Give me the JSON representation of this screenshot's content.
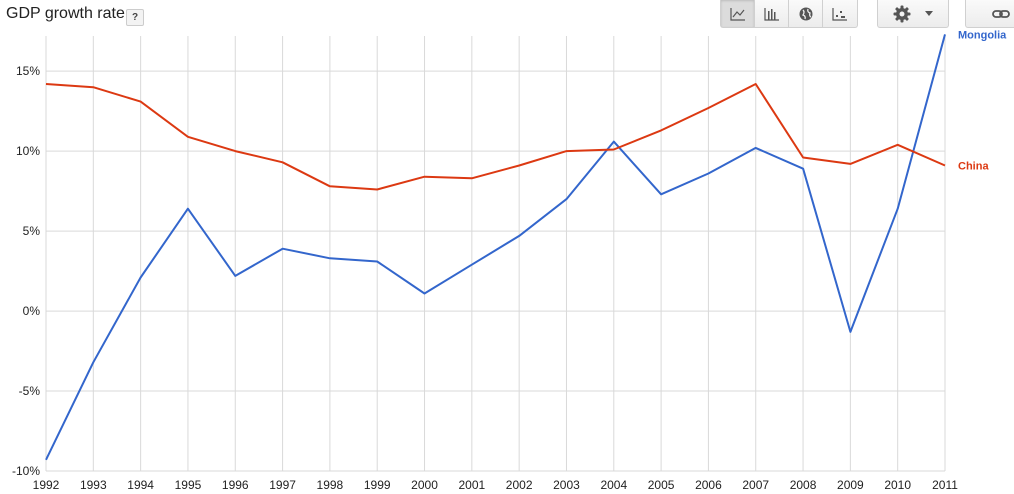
{
  "header": {
    "title": "GDP growth rate",
    "help_label": "?"
  },
  "toolbar": {
    "chart_types": [
      {
        "icon": "line-chart-icon",
        "active": true
      },
      {
        "icon": "bar-chart-icon",
        "active": false
      },
      {
        "icon": "globe-map-icon",
        "active": false
      },
      {
        "icon": "scatter-chart-icon",
        "active": false
      }
    ],
    "settings_icon": "gear-icon",
    "dropdown_icon": "caret-down-icon",
    "link_icon": "link-icon"
  },
  "chart_data": {
    "type": "line",
    "title": "GDP growth rate",
    "x": [
      1992,
      1993,
      1994,
      1995,
      1996,
      1997,
      1998,
      1999,
      2000,
      2001,
      2002,
      2003,
      2004,
      2005,
      2006,
      2007,
      2008,
      2009,
      2010,
      2011
    ],
    "x_tick_labels": [
      "1992",
      "1993",
      "1994",
      "1995",
      "1996",
      "1997",
      "1998",
      "1999",
      "2000",
      "2001",
      "2002",
      "2003",
      "2004",
      "2005",
      "2006",
      "2007",
      "2008",
      "2009",
      "2010",
      "2011"
    ],
    "y_tick_values": [
      -10,
      -5,
      0,
      5,
      10,
      15
    ],
    "y_tick_labels": [
      "-10%",
      "-5%",
      "0%",
      "5%",
      "10%",
      "15%"
    ],
    "ylim": [
      -10,
      17.2
    ],
    "grid": true,
    "legend": "end-of-line labels at right",
    "series": [
      {
        "name": "Mongolia",
        "color": "#3366cc",
        "values": [
          -9.3,
          -3.2,
          2.1,
          6.4,
          2.2,
          3.9,
          3.3,
          3.1,
          1.1,
          2.9,
          4.7,
          7.0,
          10.6,
          7.3,
          8.6,
          10.2,
          8.9,
          -1.3,
          6.4,
          17.3
        ]
      },
      {
        "name": "China",
        "color": "#dc3912",
        "values": [
          14.2,
          14.0,
          13.1,
          10.9,
          10.0,
          9.3,
          7.8,
          7.6,
          8.4,
          8.3,
          9.1,
          10.0,
          10.1,
          11.3,
          12.7,
          14.2,
          9.6,
          9.2,
          10.4,
          9.1
        ]
      }
    ]
  }
}
